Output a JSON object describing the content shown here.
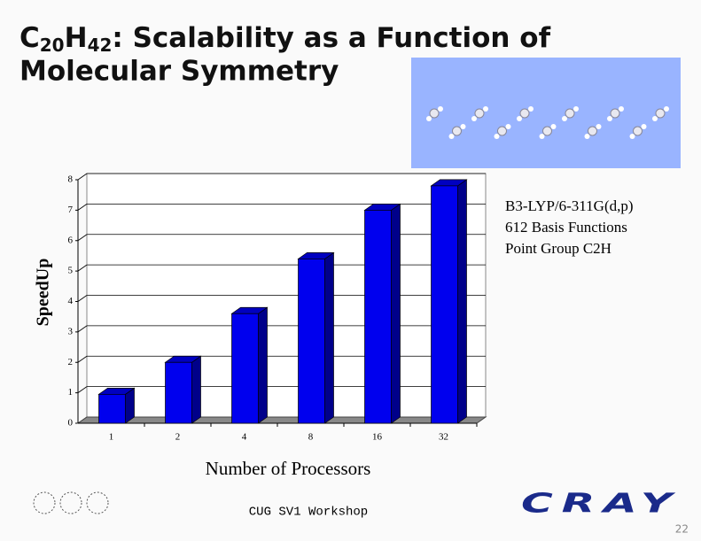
{
  "slide": {
    "title_formula": [
      "C",
      "20",
      "H",
      "42"
    ],
    "title_line1": ": Scalability as a Function of",
    "title_line2": "Molecular Symmetry",
    "annotations": [
      "B3-LYP/6-311G(d,p)",
      "612 Basis Functions",
      "Point Group C2H"
    ],
    "footer": "CUG SV1 Workshop",
    "logo": "CRAY",
    "page_number": "22"
  },
  "chart_data": {
    "type": "bar3d",
    "x_label": "Number of Processors",
    "y_label": "SpeedUp",
    "categories": [
      "1",
      "2",
      "4",
      "8",
      "16",
      "32"
    ],
    "values": [
      0.95,
      2.0,
      3.6,
      5.4,
      7.0,
      7.8
    ],
    "color": "#0000ee",
    "ylim": [
      0,
      8
    ],
    "yticks": [
      0,
      1,
      2,
      3,
      4,
      5,
      6,
      7,
      8
    ],
    "grid": true
  }
}
